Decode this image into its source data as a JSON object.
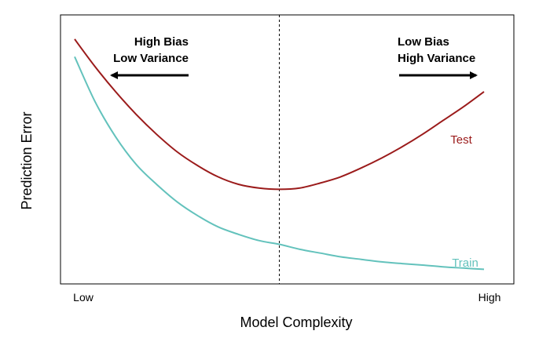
{
  "chart_data": {
    "type": "line",
    "title": "",
    "xlabel": "Model Complexity",
    "ylabel": "Prediction Error",
    "x_tick_labels": {
      "left": "Low",
      "right": "High"
    },
    "xlim": [
      0,
      1
    ],
    "ylim": [
      0,
      1
    ],
    "grid": false,
    "legend": "none",
    "series": [
      {
        "name": "Test",
        "color": "#9b1b1b",
        "x": [
          0.0,
          0.05,
          0.1,
          0.15,
          0.2,
          0.25,
          0.3,
          0.35,
          0.4,
          0.45,
          0.5,
          0.55,
          0.6,
          0.65,
          0.7,
          0.75,
          0.8,
          0.85,
          0.9,
          0.95,
          1.0
        ],
        "y": [
          0.95,
          0.84,
          0.74,
          0.65,
          0.57,
          0.5,
          0.445,
          0.4,
          0.37,
          0.355,
          0.35,
          0.355,
          0.375,
          0.4,
          0.435,
          0.475,
          0.52,
          0.57,
          0.625,
          0.68,
          0.74
        ]
      },
      {
        "name": "Train",
        "color": "#63c2bc",
        "x": [
          0.0,
          0.05,
          0.1,
          0.15,
          0.2,
          0.25,
          0.3,
          0.35,
          0.4,
          0.45,
          0.5,
          0.55,
          0.6,
          0.65,
          0.7,
          0.75,
          0.8,
          0.85,
          0.9,
          0.95,
          1.0
        ],
        "y": [
          0.88,
          0.7,
          0.56,
          0.45,
          0.37,
          0.3,
          0.245,
          0.2,
          0.17,
          0.145,
          0.13,
          0.11,
          0.095,
          0.08,
          0.07,
          0.06,
          0.053,
          0.047,
          0.04,
          0.035,
          0.03
        ]
      }
    ],
    "annotations": {
      "left_arrow_line1": "High Bias",
      "left_arrow_line2": "Low Variance",
      "right_arrow_line1": "Low Bias",
      "right_arrow_line2": "High Variance"
    },
    "optimal_complexity_x": 0.5
  }
}
